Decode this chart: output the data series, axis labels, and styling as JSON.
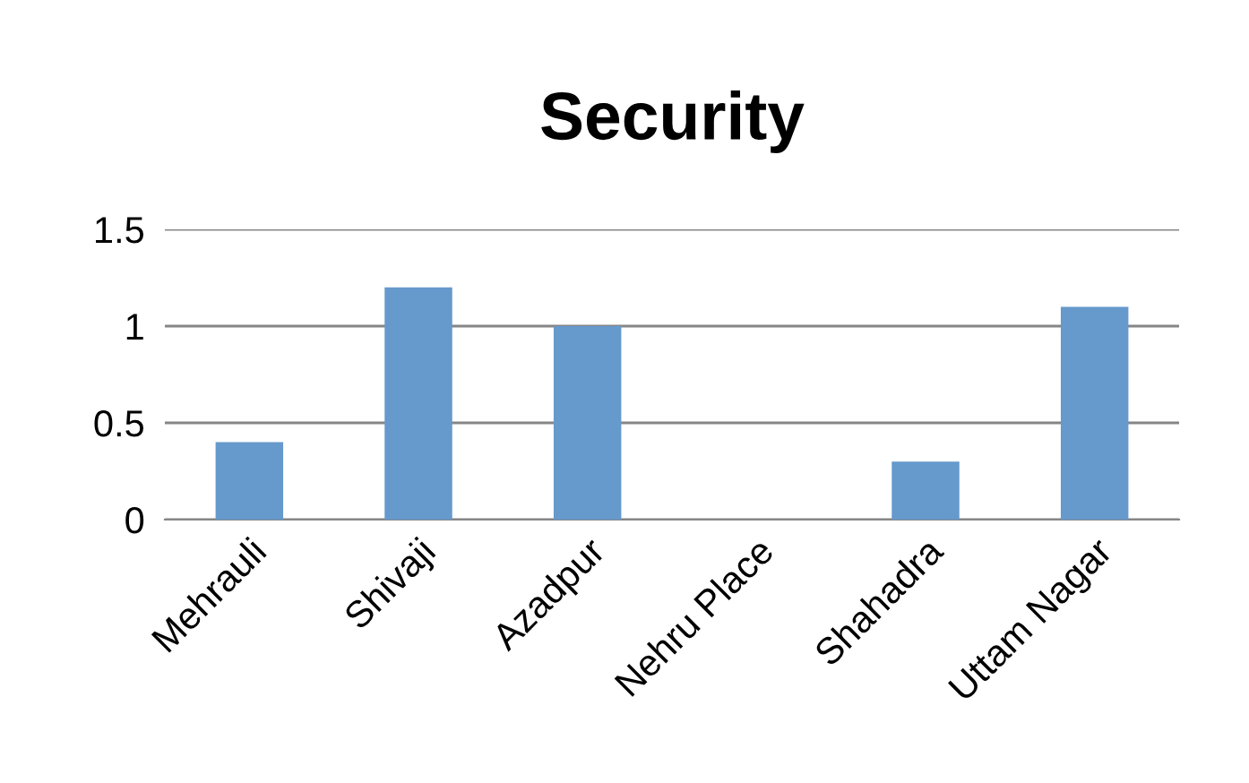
{
  "chart_data": {
    "type": "bar",
    "title": "Security",
    "categories": [
      "Mehrauli",
      "Shivaji",
      "Azadpur",
      "Nehru Place",
      "Shahadra",
      "Uttam Nagar"
    ],
    "values": [
      0.4,
      1.2,
      1.0,
      0,
      0.3,
      1.1
    ],
    "color": "#6699cc",
    "ylim": [
      0,
      1.5
    ],
    "yticks": [
      0,
      0.5,
      1,
      1.5
    ],
    "grid": "y"
  }
}
